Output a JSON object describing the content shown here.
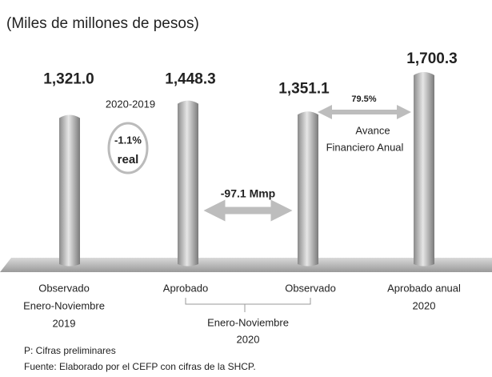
{
  "chart_data": {
    "type": "bar",
    "title": "(Miles de millones de pesos)",
    "categories": [
      [
        "Observado",
        "Enero-Noviembre",
        "2019"
      ],
      [
        "Aprobado"
      ],
      [
        "Observado"
      ],
      [
        "Aprobado anual",
        "2020"
      ]
    ],
    "values": [
      1321.0,
      1448.3,
      1351.1,
      1700.3
    ],
    "value_labels": [
      "1,321.0",
      "1,448.3",
      "1,351.1",
      "1,700.3"
    ],
    "color": "#b3b3b3",
    "group_label": [
      "Enero-Noviembre",
      "2020"
    ],
    "annotations": {
      "change_period": "2020-2019",
      "change_pct": "-1.1%",
      "change_note": "real",
      "difference": "-97.1 Mmp",
      "progress": "79.5%",
      "progress_note": [
        "Avance",
        "Financiero Anual"
      ]
    },
    "notes": [
      "P: Cifras preliminares",
      "Fuente: Elaborado por el CEFP con cifras de la SHCP."
    ]
  }
}
